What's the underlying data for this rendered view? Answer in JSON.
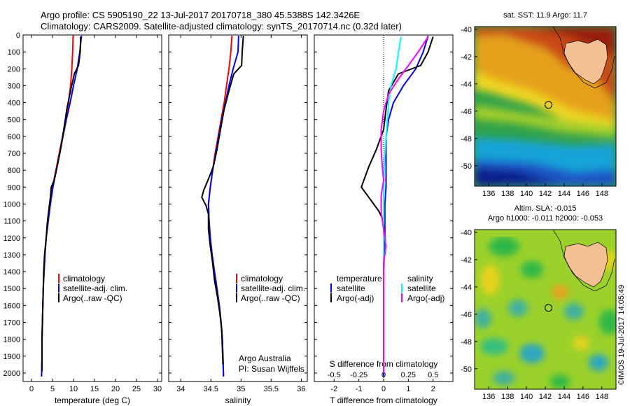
{
  "header": {
    "line1": "Argo profile: CS 5905190_22 13-Jul-2017 20170718_380 45.5388S 142.3426E",
    "line2": "Climatology: CARS2009. Satellite-adjusted climatology: synTS_20170714.nc (0.32d later)"
  },
  "colors": {
    "climatology": "#ff0000",
    "satellite": "#0000ff",
    "argo": "#000000",
    "sat_salinity": "#00ffff",
    "argo_salinity": "#ff00ff"
  },
  "chart_data": [
    {
      "type": "line",
      "id": "temperature",
      "xlabel": "temperature (deg C)",
      "ylabel": "",
      "xlim": [
        -2,
        31
      ],
      "ylim": [
        0,
        2050
      ],
      "xticks": [
        0,
        5,
        10,
        15,
        20,
        25,
        30
      ],
      "yticks": [
        0,
        100,
        200,
        300,
        400,
        500,
        600,
        700,
        800,
        900,
        1000,
        1100,
        1200,
        1300,
        1400,
        1500,
        1600,
        1700,
        1800,
        1900,
        2000
      ],
      "legend": [
        "climatology",
        "satellite-adj. clim.",
        "Argo(..raw -QC)"
      ],
      "series": [
        {
          "name": "climatology",
          "color": "#ff0000",
          "points": [
            [
              9.9,
              5
            ],
            [
              9.8,
              100
            ],
            [
              9.6,
              200
            ],
            [
              9.3,
              300
            ],
            [
              8.8,
              400
            ],
            [
              8.1,
              500
            ],
            [
              7.4,
              600
            ],
            [
              6.6,
              700
            ],
            [
              5.8,
              800
            ],
            [
              5.0,
              900
            ],
            [
              4.4,
              1000
            ],
            [
              3.9,
              1100
            ],
            [
              3.5,
              1200
            ],
            [
              3.2,
              1300
            ],
            [
              3.0,
              1400
            ],
            [
              2.8,
              1500
            ],
            [
              2.7,
              1600
            ],
            [
              2.6,
              1700
            ],
            [
              2.5,
              1800
            ],
            [
              2.5,
              1900
            ],
            [
              2.4,
              2020
            ]
          ]
        },
        {
          "name": "satellite-adj. clim.",
          "color": "#0000ff",
          "points": [
            [
              11.9,
              5
            ],
            [
              11.5,
              100
            ],
            [
              10.9,
              200
            ],
            [
              10.0,
              300
            ],
            [
              9.2,
              400
            ],
            [
              8.3,
              500
            ],
            [
              7.5,
              600
            ],
            [
              6.7,
              700
            ],
            [
              5.9,
              800
            ],
            [
              5.1,
              900
            ],
            [
              4.5,
              1000
            ],
            [
              4.0,
              1100
            ],
            [
              3.5,
              1200
            ],
            [
              3.2,
              1300
            ],
            [
              3.0,
              1400
            ],
            [
              2.8,
              1500
            ],
            [
              2.7,
              1600
            ],
            [
              2.6,
              1700
            ],
            [
              2.5,
              1800
            ],
            [
              2.5,
              1900
            ],
            [
              2.4,
              2020
            ]
          ]
        },
        {
          "name": "Argo(..raw -QC)",
          "color": "#000000",
          "points": [
            [
              11.7,
              10
            ],
            [
              11.6,
              100
            ],
            [
              11.2,
              180
            ],
            [
              10.2,
              230
            ],
            [
              9.3,
              330
            ],
            [
              8.4,
              440
            ],
            [
              7.7,
              560
            ],
            [
              6.9,
              680
            ],
            [
              6.1,
              780
            ],
            [
              5.4,
              860
            ],
            [
              4.7,
              900
            ],
            [
              4.5,
              960
            ],
            [
              4.1,
              1040
            ],
            [
              3.8,
              1100
            ],
            [
              3.5,
              1200
            ],
            [
              3.1,
              1300
            ],
            [
              2.9,
              1400
            ],
            [
              2.8,
              1500
            ],
            [
              2.7,
              1600
            ],
            [
              2.6,
              1700
            ],
            [
              2.5,
              1800
            ],
            [
              2.5,
              1900
            ],
            [
              2.5,
              1990
            ]
          ]
        }
      ]
    },
    {
      "type": "line",
      "id": "salinity",
      "xlabel": "salinity",
      "ylabel": "",
      "xlim": [
        33.8,
        36.1
      ],
      "ylim": [
        0,
        2050
      ],
      "xticks": [
        34,
        34.5,
        35,
        35.5,
        36
      ],
      "legend": [
        "climatology",
        "satellite-adj. clim.",
        "Argo(..raw -QC)"
      ],
      "credit": [
        "Argo Australia",
        "PI: Susan Wijffels"
      ],
      "series": [
        {
          "name": "climatology",
          "color": "#ff0000",
          "points": [
            [
              34.85,
              5
            ],
            [
              34.83,
              100
            ],
            [
              34.8,
              200
            ],
            [
              34.76,
              300
            ],
            [
              34.72,
              400
            ],
            [
              34.67,
              500
            ],
            [
              34.62,
              600
            ],
            [
              34.57,
              700
            ],
            [
              34.53,
              800
            ],
            [
              34.49,
              900
            ],
            [
              34.46,
              1000
            ],
            [
              34.47,
              1100
            ],
            [
              34.49,
              1200
            ],
            [
              34.52,
              1300
            ],
            [
              34.56,
              1400
            ],
            [
              34.6,
              1500
            ],
            [
              34.64,
              1600
            ],
            [
              34.67,
              1700
            ],
            [
              34.69,
              1800
            ],
            [
              34.7,
              1900
            ],
            [
              34.71,
              2020
            ]
          ]
        },
        {
          "name": "satellite-adj. clim.",
          "color": "#0000ff",
          "points": [
            [
              34.96,
              5
            ],
            [
              34.95,
              100
            ],
            [
              34.87,
              200
            ],
            [
              34.8,
              300
            ],
            [
              34.74,
              400
            ],
            [
              34.68,
              500
            ],
            [
              34.63,
              600
            ],
            [
              34.58,
              700
            ],
            [
              34.53,
              800
            ],
            [
              34.49,
              900
            ],
            [
              34.46,
              1000
            ],
            [
              34.47,
              1100
            ],
            [
              34.49,
              1200
            ],
            [
              34.52,
              1300
            ],
            [
              34.56,
              1400
            ],
            [
              34.6,
              1500
            ],
            [
              34.64,
              1600
            ],
            [
              34.67,
              1700
            ],
            [
              34.69,
              1800
            ],
            [
              34.7,
              1900
            ],
            [
              34.71,
              2020
            ]
          ]
        },
        {
          "name": "Argo(..raw -QC)",
          "color": "#000000",
          "points": [
            [
              35.04,
              5
            ],
            [
              35.02,
              100
            ],
            [
              35.01,
              180
            ],
            [
              34.88,
              230
            ],
            [
              34.8,
              330
            ],
            [
              34.72,
              440
            ],
            [
              34.66,
              560
            ],
            [
              34.6,
              680
            ],
            [
              34.54,
              780
            ],
            [
              34.45,
              860
            ],
            [
              34.38,
              920
            ],
            [
              34.35,
              960
            ],
            [
              34.42,
              1010
            ],
            [
              34.46,
              1060
            ],
            [
              34.46,
              1150
            ],
            [
              34.49,
              1250
            ],
            [
              34.53,
              1350
            ],
            [
              34.56,
              1450
            ],
            [
              34.61,
              1550
            ],
            [
              34.65,
              1650
            ],
            [
              34.68,
              1750
            ],
            [
              34.69,
              1850
            ],
            [
              34.7,
              1950
            ]
          ]
        }
      ]
    },
    {
      "type": "line",
      "id": "difference",
      "xlabel": "T difference from climatology",
      "xlabel_top": "S difference from climatology",
      "xlim": [
        -2.8,
        2.8
      ],
      "ylim": [
        0,
        2050
      ],
      "xticks_T": [
        -2,
        -1,
        0,
        1,
        2
      ],
      "xticks_S": [
        -0.5,
        -0.25,
        0,
        0.25,
        0.5
      ],
      "legend_temperature": {
        "heading": "temperature",
        "entries": [
          "satellite",
          "Argo(-adj)"
        ]
      },
      "legend_salinity": {
        "heading": "salinity",
        "entries": [
          "satellite",
          "Argo(-adj)"
        ]
      },
      "series": [
        {
          "name": "satellite",
          "color": "#0000ff",
          "points": [
            [
              1.8,
              5
            ],
            [
              1.6,
              100
            ],
            [
              1.3,
              200
            ],
            [
              0.8,
              300
            ],
            [
              0.4,
              400
            ],
            [
              0.2,
              500
            ],
            [
              0.1,
              600
            ],
            [
              0.1,
              700
            ],
            [
              0.1,
              800
            ],
            [
              0.1,
              900
            ],
            [
              0.05,
              1000
            ],
            [
              0.05,
              1200
            ],
            [
              0.0,
              1400
            ],
            [
              0.0,
              1600
            ],
            [
              0.0,
              1800
            ],
            [
              0.0,
              2020
            ]
          ]
        },
        {
          "name": "Argo(-adj)",
          "color": "#000000",
          "points": [
            [
              2.0,
              10
            ],
            [
              1.8,
              100
            ],
            [
              1.5,
              180
            ],
            [
              0.6,
              230
            ],
            [
              0.2,
              330
            ],
            [
              0.1,
              440
            ],
            [
              0.0,
              560
            ],
            [
              -0.3,
              680
            ],
            [
              -0.6,
              780
            ],
            [
              -0.8,
              860
            ],
            [
              -0.9,
              900
            ],
            [
              -0.6,
              960
            ],
            [
              -0.2,
              1040
            ],
            [
              0.0,
              1100
            ],
            [
              0.0,
              1200
            ],
            [
              0.0,
              1300
            ],
            [
              0.0,
              1500
            ],
            [
              0.0,
              1700
            ],
            [
              0.0,
              1900
            ],
            [
              0.0,
              1990
            ]
          ]
        },
        {
          "name": "satellite",
          "color": "#00ffff",
          "points": [
            [
              0.7,
              10
            ],
            [
              0.6,
              100
            ],
            [
              0.5,
              200
            ],
            [
              0.3,
              300
            ],
            [
              0.2,
              400
            ],
            [
              0.15,
              500
            ],
            [
              0.1,
              600
            ],
            [
              0.05,
              700
            ],
            [
              0.02,
              800
            ],
            [
              0.0,
              900
            ],
            [
              0.0,
              1000
            ],
            [
              0.0,
              1200
            ],
            [
              0.0,
              1500
            ],
            [
              0.0,
              1800
            ],
            [
              0.0,
              2000
            ]
          ]
        },
        {
          "name": "Argo(-adj)",
          "color": "#ff00ff",
          "points": [
            [
              1.8,
              10
            ],
            [
              1.4,
              100
            ],
            [
              1.0,
              180
            ],
            [
              0.6,
              260
            ],
            [
              0.2,
              350
            ],
            [
              0.0,
              450
            ],
            [
              -0.1,
              560
            ],
            [
              -0.1,
              680
            ],
            [
              -0.05,
              780
            ],
            [
              0.0,
              860
            ],
            [
              -0.1,
              950
            ],
            [
              -0.1,
              1050
            ],
            [
              0.0,
              1150
            ],
            [
              0.1,
              1250
            ],
            [
              0.0,
              1350
            ],
            [
              0.0,
              1500
            ],
            [
              0.0,
              1700
            ],
            [
              0.0,
              1900
            ],
            [
              0.0,
              2000
            ]
          ]
        }
      ]
    },
    {
      "type": "heatmap",
      "id": "sst_map",
      "title": "sat. SST: 11.9  Argo: 11.7",
      "xlim": [
        134.5,
        149.5
      ],
      "ylim": [
        -51.5,
        -39.8
      ],
      "xticks": [
        136,
        138,
        140,
        142,
        144,
        146,
        148
      ],
      "yticks": [
        -40,
        -42,
        -44,
        -46,
        -48,
        -50
      ],
      "marker": {
        "lon": 142.34,
        "lat": -45.54
      }
    },
    {
      "type": "heatmap",
      "id": "sla_map",
      "title": "Altim. SLA: -0.015",
      "subtitle": "Argo h1000: -0.011  h2000: -0.053",
      "xlim": [
        134.5,
        149.5
      ],
      "ylim": [
        -51.5,
        -39.8
      ],
      "xticks": [
        136,
        138,
        140,
        142,
        144,
        146,
        148
      ],
      "yticks": [
        -40,
        -42,
        -44,
        -46,
        -48,
        -50
      ],
      "marker": {
        "lon": 142.34,
        "lat": -45.54
      }
    }
  ],
  "watermark": "©IMOS 19-Jul-2017 14:05:49"
}
